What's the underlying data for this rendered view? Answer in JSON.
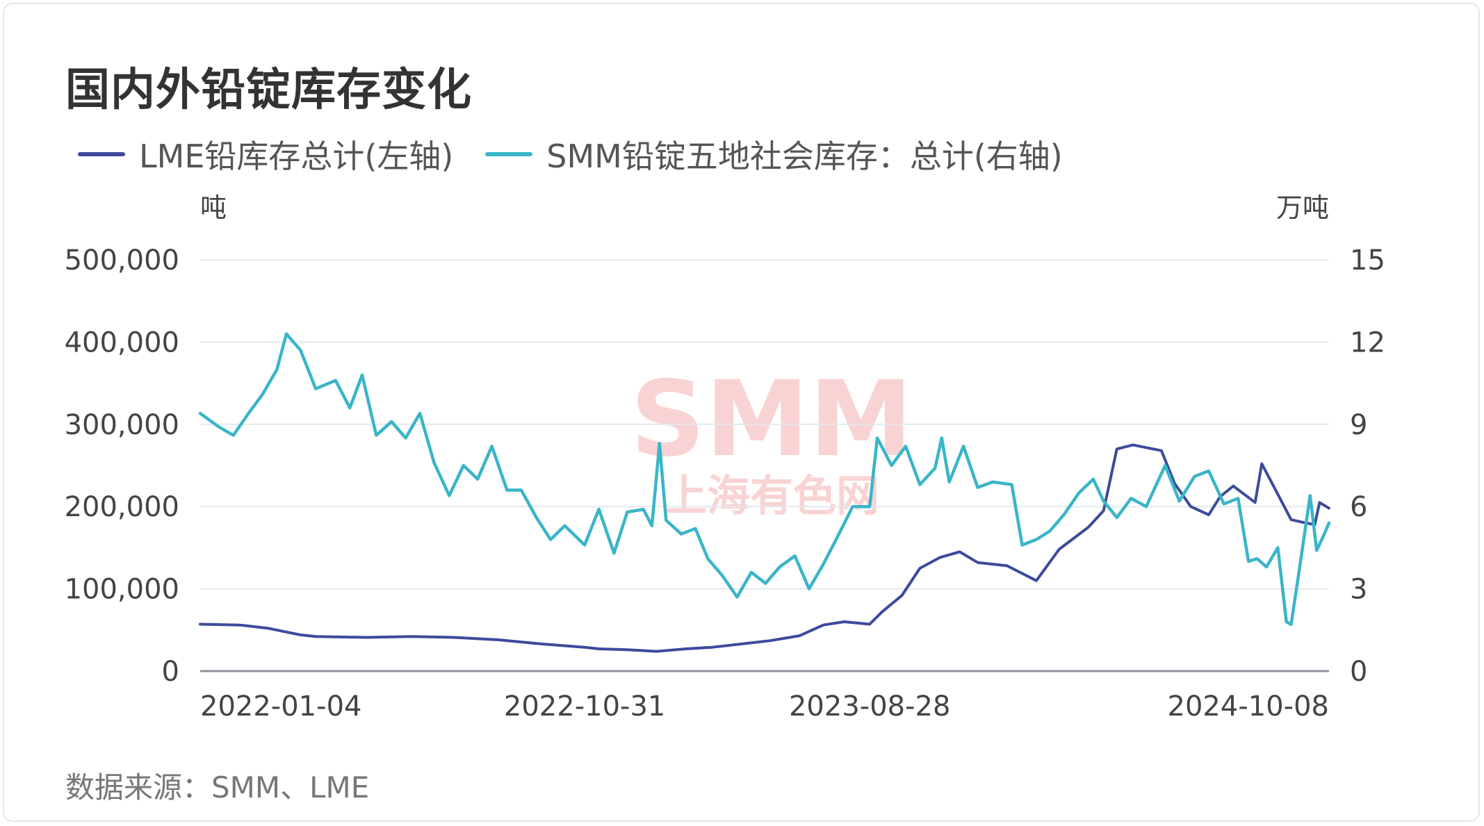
{
  "title": "国内外铅锭库存变化",
  "legend": [
    {
      "label": "LME铅库存总计(左轴)",
      "color": "#3d4a9c"
    },
    {
      "label": "SMM铅锭五地社会库存：总计(右轴)",
      "color": "#3ab5c8"
    }
  ],
  "source": "数据来源：SMM、LME",
  "watermark": {
    "top": "SMM",
    "bottom": "上海有色网"
  },
  "chart_data": {
    "type": "line",
    "grid": true,
    "legend_position": "top-left",
    "y_left": {
      "unit": "吨",
      "ylim": [
        0,
        500000
      ],
      "ticks": [
        0,
        100000,
        200000,
        300000,
        400000,
        500000
      ],
      "tick_labels": [
        "0",
        "100,000",
        "200,000",
        "300,000",
        "400,000",
        "500,000"
      ]
    },
    "y_right": {
      "unit": "万吨",
      "ylim": [
        0,
        15
      ],
      "ticks": [
        0,
        3,
        6,
        9,
        12,
        15
      ],
      "tick_labels": [
        "0",
        "3",
        "6",
        "9",
        "12",
        "15"
      ]
    },
    "x_range": [
      "2021-09-20",
      "2024-12-25"
    ],
    "x_tick_labels": [
      "2022-01-04",
      "2022-10-31",
      "2023-08-28",
      "2024-10-08"
    ],
    "series": [
      {
        "name": "LME铅库存总计(左轴)",
        "axis": "left",
        "color": "#3d4a9c",
        "points": [
          [
            "2021-09-20",
            57000
          ],
          [
            "2021-11-01",
            56000
          ],
          [
            "2021-12-01",
            52000
          ],
          [
            "2022-01-04",
            44000
          ],
          [
            "2022-01-20",
            42000
          ],
          [
            "2022-03-15",
            41000
          ],
          [
            "2022-05-01",
            42000
          ],
          [
            "2022-06-15",
            41000
          ],
          [
            "2022-08-01",
            38000
          ],
          [
            "2022-09-15",
            33000
          ],
          [
            "2022-10-31",
            29000
          ],
          [
            "2022-11-15",
            27000
          ],
          [
            "2022-12-15",
            26000
          ],
          [
            "2023-01-15",
            24000
          ],
          [
            "2023-02-15",
            27000
          ],
          [
            "2023-03-15",
            29000
          ],
          [
            "2023-04-15",
            33000
          ],
          [
            "2023-05-15",
            37000
          ],
          [
            "2023-06-15",
            43000
          ],
          [
            "2023-07-10",
            56000
          ],
          [
            "2023-08-01",
            60000
          ],
          [
            "2023-08-28",
            57000
          ],
          [
            "2023-09-10",
            72000
          ],
          [
            "2023-10-01",
            92000
          ],
          [
            "2023-10-20",
            125000
          ],
          [
            "2023-11-10",
            138000
          ],
          [
            "2023-12-01",
            145000
          ],
          [
            "2023-12-20",
            132000
          ],
          [
            "2024-01-20",
            128000
          ],
          [
            "2024-02-20",
            110000
          ],
          [
            "2024-03-15",
            148000
          ],
          [
            "2024-04-15",
            175000
          ],
          [
            "2024-05-01",
            195000
          ],
          [
            "2024-05-15",
            270000
          ],
          [
            "2024-06-01",
            275000
          ],
          [
            "2024-07-01",
            268000
          ],
          [
            "2024-07-15",
            228000
          ],
          [
            "2024-08-01",
            200000
          ],
          [
            "2024-08-20",
            190000
          ],
          [
            "2024-09-01",
            212000
          ],
          [
            "2024-09-15",
            225000
          ],
          [
            "2024-10-08",
            205000
          ],
          [
            "2024-10-15",
            252000
          ],
          [
            "2024-11-01",
            215000
          ],
          [
            "2024-11-15",
            184000
          ],
          [
            "2024-12-01",
            180000
          ],
          [
            "2024-12-10",
            178000
          ],
          [
            "2024-12-15",
            205000
          ],
          [
            "2024-12-25",
            198000
          ]
        ]
      },
      {
        "name": "SMM铅锭五地社会库存：总计(右轴)",
        "axis": "right",
        "color": "#3ab5c8",
        "points": [
          [
            "2021-09-20",
            9.4
          ],
          [
            "2021-10-10",
            8.9
          ],
          [
            "2021-10-25",
            8.6
          ],
          [
            "2021-11-10",
            9.4
          ],
          [
            "2021-11-25",
            10.1
          ],
          [
            "2021-12-10",
            11.0
          ],
          [
            "2021-12-20",
            12.3
          ],
          [
            "2022-01-04",
            11.7
          ],
          [
            "2022-01-20",
            10.3
          ],
          [
            "2022-02-10",
            10.6
          ],
          [
            "2022-02-25",
            9.6
          ],
          [
            "2022-03-10",
            10.8
          ],
          [
            "2022-03-25",
            8.6
          ],
          [
            "2022-04-10",
            9.1
          ],
          [
            "2022-04-25",
            8.5
          ],
          [
            "2022-05-10",
            9.4
          ],
          [
            "2022-05-25",
            7.6
          ],
          [
            "2022-06-10",
            6.4
          ],
          [
            "2022-06-25",
            7.5
          ],
          [
            "2022-07-10",
            7.0
          ],
          [
            "2022-07-25",
            8.2
          ],
          [
            "2022-08-10",
            6.6
          ],
          [
            "2022-08-25",
            6.6
          ],
          [
            "2022-09-10",
            5.6
          ],
          [
            "2022-09-25",
            4.8
          ],
          [
            "2022-10-10",
            5.3
          ],
          [
            "2022-10-31",
            4.6
          ],
          [
            "2022-11-15",
            5.9
          ],
          [
            "2022-12-01",
            4.3
          ],
          [
            "2022-12-15",
            5.8
          ],
          [
            "2023-01-01",
            5.9
          ],
          [
            "2023-01-10",
            5.3
          ],
          [
            "2023-01-18",
            8.3
          ],
          [
            "2023-01-25",
            5.5
          ],
          [
            "2023-02-10",
            5.0
          ],
          [
            "2023-02-25",
            5.2
          ],
          [
            "2023-03-10",
            4.1
          ],
          [
            "2023-03-25",
            3.5
          ],
          [
            "2023-04-10",
            2.7
          ],
          [
            "2023-04-25",
            3.6
          ],
          [
            "2023-05-10",
            3.2
          ],
          [
            "2023-05-25",
            3.8
          ],
          [
            "2023-06-10",
            4.2
          ],
          [
            "2023-06-25",
            3.0
          ],
          [
            "2023-07-10",
            3.9
          ],
          [
            "2023-07-25",
            4.9
          ],
          [
            "2023-08-10",
            6.0
          ],
          [
            "2023-08-28",
            6.0
          ],
          [
            "2023-09-05",
            8.5
          ],
          [
            "2023-09-20",
            7.5
          ],
          [
            "2023-10-05",
            8.2
          ],
          [
            "2023-10-20",
            6.8
          ],
          [
            "2023-11-05",
            7.4
          ],
          [
            "2023-11-12",
            8.5
          ],
          [
            "2023-11-20",
            6.9
          ],
          [
            "2023-12-05",
            8.2
          ],
          [
            "2023-12-20",
            6.7
          ],
          [
            "2024-01-05",
            6.9
          ],
          [
            "2024-01-25",
            6.8
          ],
          [
            "2024-02-05",
            4.6
          ],
          [
            "2024-02-20",
            4.8
          ],
          [
            "2024-03-05",
            5.1
          ],
          [
            "2024-03-20",
            5.7
          ],
          [
            "2024-04-05",
            6.5
          ],
          [
            "2024-04-20",
            7.0
          ],
          [
            "2024-05-01",
            6.2
          ],
          [
            "2024-05-15",
            5.6
          ],
          [
            "2024-05-30",
            6.3
          ],
          [
            "2024-06-15",
            6.0
          ],
          [
            "2024-07-05",
            7.5
          ],
          [
            "2024-07-20",
            6.2
          ],
          [
            "2024-08-05",
            7.1
          ],
          [
            "2024-08-20",
            7.3
          ],
          [
            "2024-09-05",
            6.1
          ],
          [
            "2024-09-20",
            6.3
          ],
          [
            "2024-10-01",
            4.0
          ],
          [
            "2024-10-10",
            4.1
          ],
          [
            "2024-10-20",
            3.8
          ],
          [
            "2024-11-01",
            4.5
          ],
          [
            "2024-11-10",
            1.8
          ],
          [
            "2024-11-15",
            1.7
          ],
          [
            "2024-11-25",
            4.0
          ],
          [
            "2024-12-05",
            6.4
          ],
          [
            "2024-12-12",
            4.4
          ],
          [
            "2024-12-20",
            5.0
          ],
          [
            "2024-12-25",
            5.4
          ]
        ]
      }
    ]
  }
}
